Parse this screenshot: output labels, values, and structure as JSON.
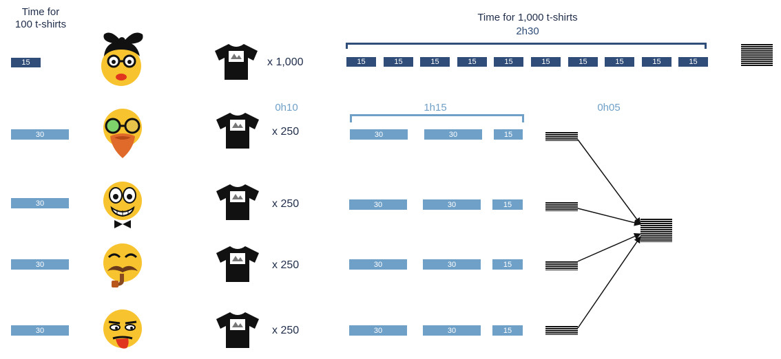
{
  "header": {
    "time_100_line1": "Time for",
    "time_100_line2": "100 t-shirts",
    "time_1000": "Time for 1,000 t-shirts"
  },
  "durations": {
    "sequential_total": "2h30",
    "setup": "0h10",
    "parallel_total": "1h15",
    "merge": "0h05"
  },
  "single_worker": {
    "time_per_100": "15",
    "quantity": "x 1,000",
    "segments": [
      "15",
      "15",
      "15",
      "15",
      "15",
      "15",
      "15",
      "15",
      "15",
      "15"
    ]
  },
  "team": {
    "time_per_100": "30",
    "quantity": "x 250",
    "segments": [
      "30",
      "30",
      "15"
    ],
    "rows": 4
  },
  "colors": {
    "dark_blue": "#2f4d78",
    "light_blue": "#6fa0c8",
    "emoji_yellow": "#f7c32e",
    "black": "#111111"
  },
  "icons": {
    "workers": [
      "woman-glasses-bow-emoji",
      "bearded-hipster-emoji",
      "bowtie-grin-emoji",
      "mustache-pipe-emoji",
      "tongue-out-emoji"
    ],
    "shirt": "tshirt-icon",
    "stack": "stacked-shirts-icon"
  }
}
